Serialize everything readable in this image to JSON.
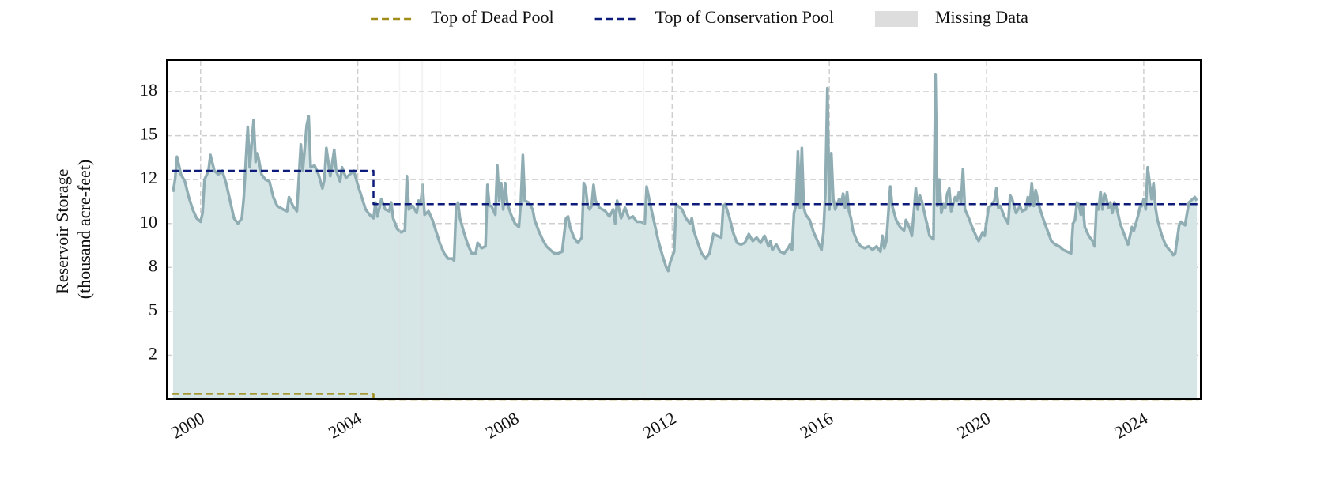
{
  "chart_data": {
    "type": "line",
    "ylabel": [
      "Reservoir Storage",
      "(thousand acre-feet)"
    ],
    "xlim": [
      1999.14,
      2025.45
    ],
    "ylim": [
      0,
      19.3
    ],
    "xticks": [
      2000,
      2004,
      2008,
      2012,
      2016,
      2020,
      2024
    ],
    "yticks": [
      {
        "value": 2.5,
        "label": "2"
      },
      {
        "value": 5,
        "label": "5"
      },
      {
        "value": 7.5,
        "label": "8"
      },
      {
        "value": 10,
        "label": "10"
      },
      {
        "value": 12.5,
        "label": "12"
      },
      {
        "value": 15,
        "label": "15"
      },
      {
        "value": 17.5,
        "label": "18"
      }
    ],
    "grid": true,
    "legend": "top",
    "series": [
      {
        "color": "#8fadb3",
        "fill": "#d6e5e6",
        "x": [
          1999.3,
          1999.35,
          1999.4,
          1999.5,
          1999.6,
          1999.7,
          1999.8,
          1999.9,
          2000.0,
          2000.05,
          2000.1,
          2000.2,
          2000.25,
          2000.35,
          2000.45,
          2000.55,
          2000.65,
          2000.75,
          2000.85,
          2000.95,
          2001.05,
          2001.1,
          2001.2,
          2001.25,
          2001.35,
          2001.4,
          2001.45,
          2001.55,
          2001.65,
          2001.75,
          2001.85,
          2001.95,
          2002.1,
          2002.2,
          2002.25,
          2002.35,
          2002.45,
          2002.55,
          2002.6,
          2002.7,
          2002.75,
          2002.8,
          2002.9,
          2003.0,
          2003.1,
          2003.15,
          2003.2,
          2003.3,
          2003.4,
          2003.45,
          2003.55,
          2003.6,
          2003.7,
          2003.8,
          2003.9,
          2004.0,
          2004.1,
          2004.2,
          2004.3,
          2004.4,
          2004.45,
          2004.5,
          2004.6,
          2004.7,
          2004.8,
          2004.85,
          2004.9,
          2005.0,
          2005.1,
          2005.2,
          2005.25,
          2005.3,
          2005.4,
          2005.5,
          2005.55,
          2005.6,
          2005.65,
          2005.7,
          2005.8,
          2005.9,
          2006.0,
          2006.1,
          2006.2,
          2006.3,
          2006.4,
          2006.45,
          2006.5,
          2006.55,
          2006.6,
          2006.7,
          2006.8,
          2006.9,
          2007.0,
          2007.05,
          2007.15,
          2007.25,
          2007.3,
          2007.35,
          2007.4,
          2007.5,
          2007.55,
          2007.6,
          2007.65,
          2007.7,
          2007.75,
          2007.8,
          2007.9,
          2008.0,
          2008.1,
          2008.15,
          2008.2,
          2008.25,
          2008.35,
          2008.45,
          2008.5,
          2008.6,
          2008.7,
          2008.8,
          2008.9,
          2009.0,
          2009.1,
          2009.2,
          2009.3,
          2009.35,
          2009.4,
          2009.5,
          2009.6,
          2009.7,
          2009.75,
          2009.8,
          2009.85,
          2009.9,
          2009.95,
          2010.0,
          2010.05,
          2010.15,
          2010.3,
          2010.4,
          2010.5,
          2010.55,
          2010.6,
          2010.7,
          2010.8,
          2010.9,
          2011.0,
          2011.1,
          2011.2,
          2011.3,
          2011.35,
          2011.45,
          2011.55,
          2011.65,
          2011.75,
          2011.85,
          2011.9,
          2011.95,
          2012.05,
          2012.1,
          2012.15,
          2012.25,
          2012.35,
          2012.45,
          2012.5,
          2012.55,
          2012.65,
          2012.75,
          2012.85,
          2012.95,
          2013.05,
          2013.15,
          2013.25,
          2013.3,
          2013.35,
          2013.45,
          2013.55,
          2013.65,
          2013.75,
          2013.85,
          2013.95,
          2014.05,
          2014.15,
          2014.25,
          2014.35,
          2014.45,
          2014.5,
          2014.55,
          2014.65,
          2014.75,
          2014.85,
          2014.95,
          2015.0,
          2015.05,
          2015.1,
          2015.15,
          2015.2,
          2015.25,
          2015.3,
          2015.35,
          2015.4,
          2015.5,
          2015.6,
          2015.7,
          2015.8,
          2015.85,
          2015.9,
          2015.95,
          2016.0,
          2016.05,
          2016.1,
          2016.15,
          2016.25,
          2016.3,
          2016.35,
          2016.4,
          2016.45,
          2016.5,
          2016.55,
          2016.6,
          2016.7,
          2016.8,
          2016.9,
          2017.0,
          2017.1,
          2017.2,
          2017.3,
          2017.35,
          2017.4,
          2017.45,
          2017.55,
          2017.6,
          2017.7,
          2017.8,
          2017.9,
          2017.95,
          2018.05,
          2018.1,
          2018.2,
          2018.25,
          2018.3,
          2018.35,
          2018.45,
          2018.55,
          2018.65,
          2018.7,
          2018.75,
          2018.8,
          2018.85,
          2018.9,
          2018.95,
          2019.0,
          2019.05,
          2019.1,
          2019.2,
          2019.25,
          2019.3,
          2019.35,
          2019.4,
          2019.45,
          2019.55,
          2019.65,
          2019.75,
          2019.8,
          2019.9,
          2019.95,
          2020.05,
          2020.1,
          2020.2,
          2020.25,
          2020.3,
          2020.35,
          2020.45,
          2020.55,
          2020.6,
          2020.65,
          2020.75,
          2020.85,
          2020.9,
          2021.0,
          2021.05,
          2021.1,
          2021.15,
          2021.2,
          2021.25,
          2021.35,
          2021.45,
          2021.55,
          2021.65,
          2021.75,
          2021.85,
          2021.95,
          2022.05,
          2022.15,
          2022.2,
          2022.25,
          2022.3,
          2022.35,
          2022.4,
          2022.45,
          2022.5,
          2022.6,
          2022.7,
          2022.75,
          2022.8,
          2022.85,
          2022.9,
          2022.95,
          2023.0,
          2023.05,
          2023.1,
          2023.15,
          2023.2,
          2023.25,
          2023.3,
          2023.4,
          2023.5,
          2023.6,
          2023.7,
          2023.75,
          2023.85,
          2023.9,
          2023.95,
          2024.0,
          2024.05,
          2024.1,
          2024.2,
          2024.25,
          2024.3,
          2024.35,
          2024.45,
          2024.55,
          2024.65,
          2024.7,
          2024.75,
          2024.8,
          2024.9,
          2024.95,
          2025.05,
          2025.15,
          2025.3,
          2025.35
        ],
        "values": [
          11.8,
          12.5,
          13.8,
          12.8,
          12.4,
          11.5,
          10.8,
          10.3,
          10.1,
          10.6,
          12.5,
          13.0,
          13.9,
          13.0,
          12.8,
          13.0,
          12.3,
          11.3,
          10.3,
          10.0,
          10.3,
          11.5,
          15.5,
          13.2,
          15.9,
          13.5,
          14.0,
          12.8,
          12.5,
          12.4,
          11.5,
          11.0,
          10.8,
          10.7,
          11.5,
          11.0,
          10.7,
          14.5,
          13.0,
          15.6,
          16.1,
          13.2,
          13.3,
          12.8,
          12.0,
          12.5,
          14.3,
          12.7,
          14.2,
          13.0,
          12.4,
          13.2,
          12.6,
          12.8,
          13.0,
          12.2,
          11.5,
          10.8,
          10.5,
          10.3,
          11.2,
          10.4,
          11.4,
          10.8,
          10.7,
          11.2,
          10.3,
          9.7,
          9.5,
          9.6,
          12.7,
          10.8,
          11.0,
          10.6,
          11.3,
          11.1,
          12.2,
          10.5,
          10.7,
          10.2,
          9.5,
          8.8,
          8.3,
          8.0,
          8.0,
          7.9,
          10.8,
          11.2,
          10.3,
          9.5,
          8.8,
          8.3,
          8.3,
          8.9,
          8.6,
          8.7,
          12.2,
          11.0,
          11.0,
          10.5,
          13.3,
          11.3,
          12.3,
          10.8,
          12.3,
          11.2,
          10.5,
          10.0,
          9.8,
          11.3,
          13.9,
          11.3,
          11.2,
          10.8,
          10.2,
          9.6,
          9.1,
          8.7,
          8.5,
          8.3,
          8.3,
          8.4,
          10.3,
          10.4,
          9.8,
          9.2,
          8.9,
          9.2,
          12.3,
          12.0,
          11.0,
          10.8,
          11.0,
          12.2,
          11.3,
          10.9,
          10.7,
          10.4,
          10.8,
          10.0,
          11.3,
          10.3,
          10.9,
          10.3,
          10.4,
          10.1,
          10.1,
          10.0,
          12.1,
          11.0,
          10.0,
          9.0,
          8.2,
          7.5,
          7.3,
          7.8,
          8.4,
          11.1,
          11.0,
          10.8,
          10.3,
          10.0,
          10.3,
          9.6,
          8.9,
          8.3,
          8.0,
          8.3,
          9.4,
          9.3,
          9.2,
          11.0,
          11.1,
          10.4,
          9.5,
          8.9,
          8.8,
          8.9,
          9.4,
          9.0,
          9.2,
          8.9,
          9.3,
          8.7,
          9.0,
          8.5,
          8.8,
          8.4,
          8.3,
          8.6,
          8.8,
          8.5,
          10.6,
          11.0,
          14.1,
          10.9,
          14.3,
          10.9,
          10.5,
          10.2,
          9.5,
          9.0,
          8.5,
          9.5,
          11.8,
          17.7,
          10.8,
          14.0,
          11.4,
          10.8,
          11.4,
          11.1,
          11.7,
          10.9,
          11.8,
          10.7,
          10.3,
          9.6,
          9.0,
          8.7,
          8.6,
          8.7,
          8.5,
          8.7,
          8.4,
          9.3,
          8.6,
          9.0,
          12.1,
          11.0,
          10.2,
          9.8,
          9.6,
          10.2,
          9.7,
          9.3,
          12.0,
          10.8,
          11.6,
          11.3,
          10.3,
          9.3,
          9.1,
          18.5,
          11.0,
          12.5,
          10.6,
          11.1,
          10.9,
          11.7,
          12.0,
          10.7,
          11.5,
          11.3,
          11.8,
          11.2,
          13.1,
          10.8,
          10.3,
          9.7,
          9.2,
          9.0,
          9.5,
          9.3,
          10.9,
          11.0,
          11.3,
          12.0,
          10.9,
          11.0,
          10.4,
          10.0,
          11.6,
          11.4,
          10.6,
          11.0,
          10.7,
          10.8,
          11.5,
          11.0,
          12.3,
          11.0,
          11.9,
          10.9,
          10.2,
          9.6,
          9.0,
          8.8,
          8.7,
          8.5,
          8.4,
          8.3,
          10.0,
          10.2,
          11.2,
          11.1,
          10.5,
          11.0,
          9.8,
          9.3,
          9.0,
          8.7,
          11.1,
          10.8,
          11.8,
          10.8,
          11.7,
          11.4,
          10.9,
          11.2,
          10.6,
          11.2,
          11.0,
          10.0,
          9.4,
          8.8,
          9.8,
          9.6,
          10.4,
          10.9,
          11.0,
          11.4,
          10.8,
          13.2,
          11.4,
          12.3,
          10.9,
          10.2,
          9.4,
          8.8,
          8.5,
          8.4,
          8.2,
          8.3,
          9.9,
          10.1,
          9.9,
          11.2,
          11.5,
          11.3
        ]
      },
      {
        "name": "Top of Dead Pool",
        "color": "#a08c1a",
        "dashed": true,
        "x": [
          1999.28,
          2004.4,
          2004.4,
          2025.38
        ],
        "values": [
          0.3,
          0.3,
          0,
          0
        ]
      },
      {
        "name": "Top of Conservation Pool",
        "color": "#0c1a7a",
        "dashed": true,
        "x": [
          1999.28,
          2004.4,
          2004.4,
          2025.38
        ],
        "values": [
          13.0,
          13.0,
          11.1,
          11.1
        ]
      }
    ],
    "missing_data": {
      "name": "Missing Data",
      "color": "#dddddd",
      "spans": [
        [
          2005.05,
          2005.08
        ],
        [
          2005.62,
          2005.66
        ],
        [
          2006.08,
          2006.11
        ],
        [
          2011.26,
          2011.29
        ]
      ]
    }
  }
}
